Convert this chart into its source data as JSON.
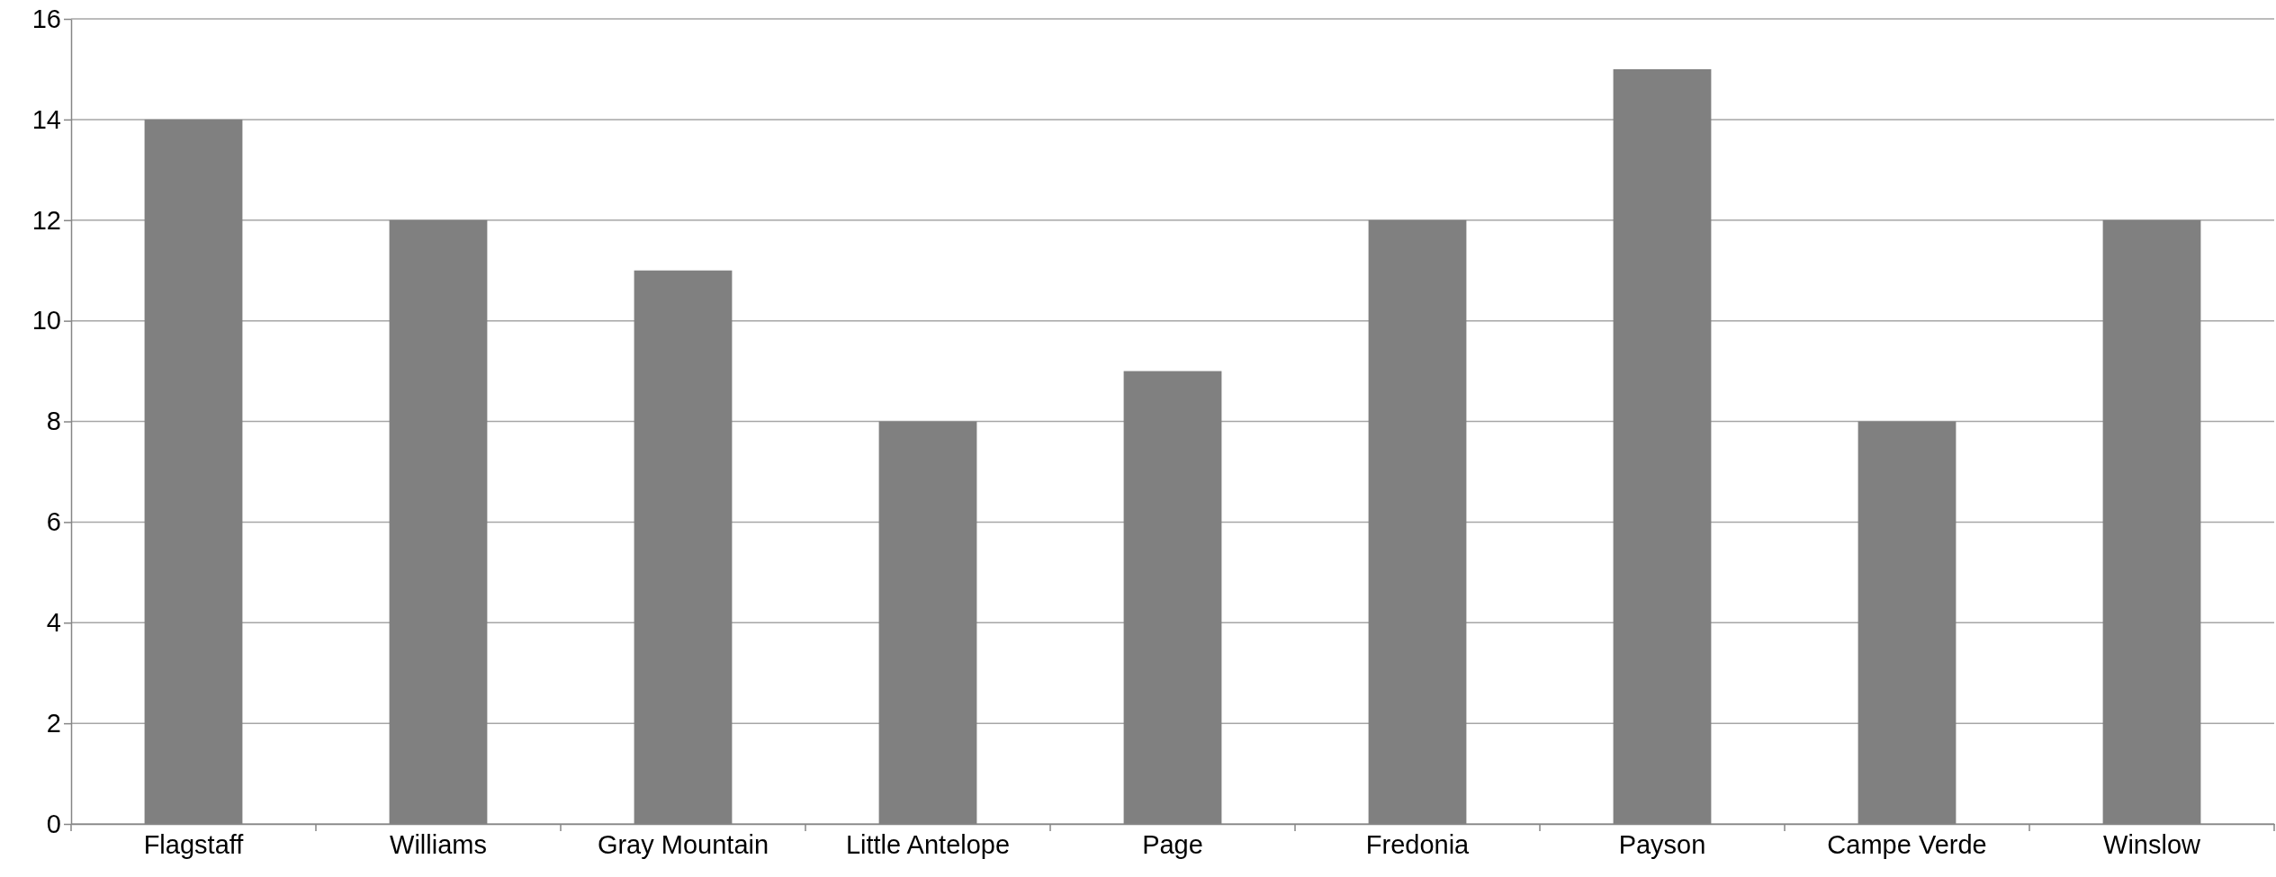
{
  "chart_data": {
    "type": "bar",
    "categories": [
      "Flagstaff",
      "Williams",
      "Gray Mountain",
      "Little Antelope",
      "Page",
      "Fredonia",
      "Payson",
      "Campe Verde",
      "Winslow"
    ],
    "values": [
      14,
      12,
      11,
      8,
      9,
      12,
      15,
      8,
      12
    ],
    "color": "#808080",
    "ylim": [
      0,
      16
    ],
    "yticks": [
      0,
      2,
      4,
      6,
      8,
      10,
      12,
      14,
      16
    ],
    "grid": "y"
  }
}
